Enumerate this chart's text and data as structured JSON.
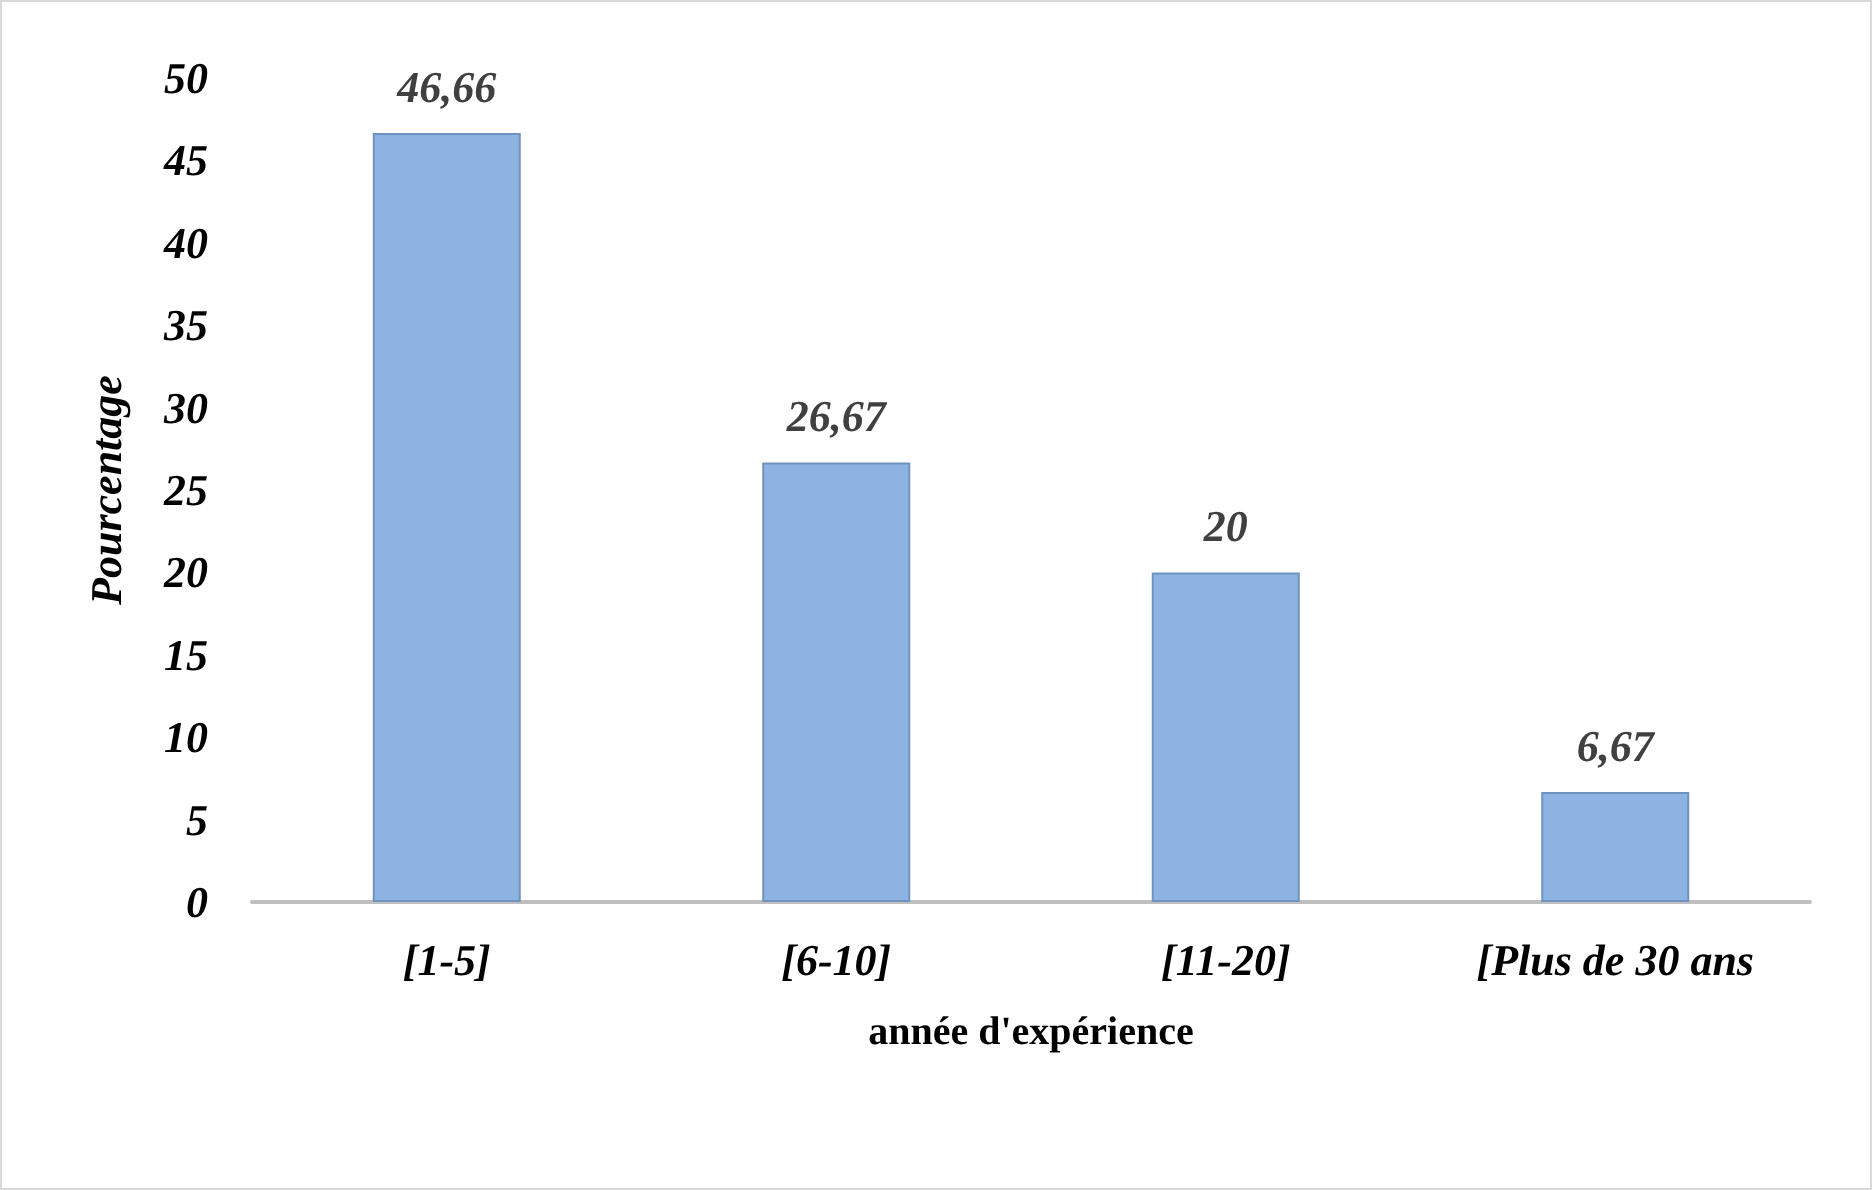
{
  "chart_data": {
    "type": "bar",
    "xlabel": "année d'expérience",
    "ylabel": "Pourcentage",
    "categories": [
      "[1-5]",
      "[6-10]",
      "[11-20]",
      "[Plus de 30 ans"
    ],
    "values": [
      46.66,
      26.67,
      20,
      6.67
    ],
    "value_labels": [
      "46,66",
      "26,67",
      "20",
      "6,67"
    ],
    "color": "#8db3e2",
    "ylim": [
      0,
      50
    ],
    "yticks": [
      0,
      5,
      10,
      15,
      20,
      25,
      30,
      35,
      40,
      45,
      50
    ]
  }
}
